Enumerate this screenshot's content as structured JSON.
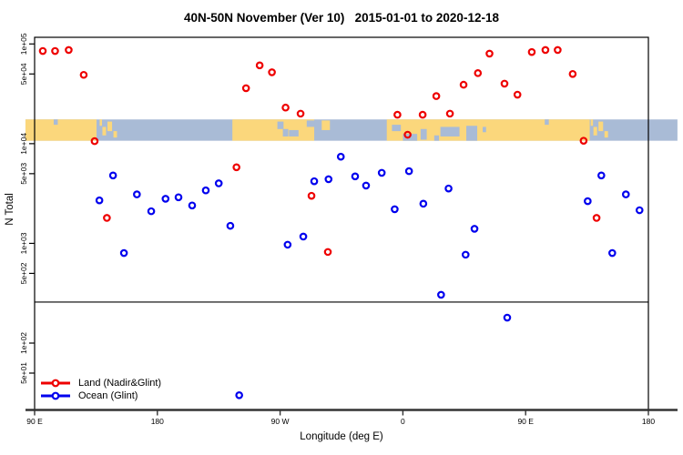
{
  "title": "40N-50N November (Ver 10)   2015-01-01 to 2020-12-18",
  "legend": {
    "items": [
      {
        "label": "Land (Nadir&Glint)",
        "color": "#ee0000"
      },
      {
        "label": "Ocean (Glint)",
        "color": "#0000ee"
      }
    ]
  },
  "colors": {
    "land_point": "#ee0000",
    "ocean_point": "#0000ee",
    "map_land": "#fbd77c",
    "map_water": "#a9bbd6",
    "axis": "#000000",
    "bottom_axis": "#333333"
  },
  "chart_data": {
    "type": "scatter",
    "title": "40N-50N November (Ver 10)   2015-01-01 to 2020-12-18",
    "xlabel": "Longitude (deg E)",
    "ylabel": "N Total",
    "x_axis": {
      "note": "longitude axis starts at 90E and wraps: values run -270..180 deg E",
      "range": [
        -270,
        180
      ],
      "ticks": [
        {
          "pos": -270,
          "label": "90 E"
        },
        {
          "pos": -180,
          "label": "180"
        },
        {
          "pos": -90,
          "label": "90 W"
        },
        {
          "pos": 0,
          "label": "0"
        },
        {
          "pos": 90,
          "label": "90 E"
        },
        {
          "pos": 180,
          "label": "180"
        }
      ]
    },
    "y_axis": {
      "scale": "log10",
      "range": [
        22,
        119000
      ],
      "ticks": [
        {
          "value": 100000,
          "label": "1e+05"
        },
        {
          "value": 50000,
          "label": "5e+04"
        },
        {
          "value": 10000,
          "label": "1e+04"
        },
        {
          "value": 5000,
          "label": "5e+03"
        },
        {
          "value": 1000,
          "label": "1e+03"
        },
        {
          "value": 500,
          "label": "5e+02"
        },
        {
          "value": 100,
          "label": "1e+02"
        },
        {
          "value": 50,
          "label": "5e+01"
        }
      ]
    },
    "threshold_line_n": 258,
    "series": [
      {
        "name": "Land (Nadir&Glint)",
        "color": "#ee0000",
        "points": [
          {
            "lon": -264,
            "n": 85000
          },
          {
            "lon": -255,
            "n": 85000
          },
          {
            "lon": -245,
            "n": 87000
          },
          {
            "lon": -234,
            "n": 49000
          },
          {
            "lon": -226,
            "n": 10600
          },
          {
            "lon": -217,
            "n": 1800
          },
          {
            "lon": -122,
            "n": 5800
          },
          {
            "lon": -115,
            "n": 36000
          },
          {
            "lon": -105,
            "n": 61000
          },
          {
            "lon": -96,
            "n": 52000
          },
          {
            "lon": -86,
            "n": 23000
          },
          {
            "lon": -75,
            "n": 20000
          },
          {
            "lon": -67,
            "n": 3000
          },
          {
            "lon": -55,
            "n": 820
          },
          {
            "lon": -4,
            "n": 19500
          },
          {
            "lon": 3.5,
            "n": 12300
          },
          {
            "lon": 14.5,
            "n": 19500
          },
          {
            "lon": 24.5,
            "n": 30000
          },
          {
            "lon": 34.5,
            "n": 20000
          },
          {
            "lon": 44.5,
            "n": 39000
          },
          {
            "lon": 55,
            "n": 51000
          },
          {
            "lon": 63.5,
            "n": 80000
          },
          {
            "lon": 74.5,
            "n": 40000
          },
          {
            "lon": 84,
            "n": 31000
          },
          {
            "lon": 94.5,
            "n": 83000
          },
          {
            "lon": 104.5,
            "n": 87000
          },
          {
            "lon": 113.5,
            "n": 87000
          },
          {
            "lon": 124.5,
            "n": 50000
          },
          {
            "lon": 132.5,
            "n": 10700
          },
          {
            "lon": 142,
            "n": 1800
          }
        ]
      },
      {
        "name": "Ocean (Glint)",
        "color": "#0000ee",
        "points": [
          {
            "lon": -222.5,
            "n": 2700
          },
          {
            "lon": -212.5,
            "n": 4800
          },
          {
            "lon": -204.5,
            "n": 800
          },
          {
            "lon": -195,
            "n": 3100
          },
          {
            "lon": -184.5,
            "n": 2100
          },
          {
            "lon": -174,
            "n": 2800
          },
          {
            "lon": -164.5,
            "n": 2900
          },
          {
            "lon": -154.5,
            "n": 2400
          },
          {
            "lon": -144.5,
            "n": 3400
          },
          {
            "lon": -135,
            "n": 4000
          },
          {
            "lon": -126.5,
            "n": 1500
          },
          {
            "lon": -120,
            "n": 30
          },
          {
            "lon": -84.5,
            "n": 970
          },
          {
            "lon": -73,
            "n": 1170
          },
          {
            "lon": -65,
            "n": 4200
          },
          {
            "lon": -54.5,
            "n": 4400
          },
          {
            "lon": -45.5,
            "n": 7400
          },
          {
            "lon": -35,
            "n": 4700
          },
          {
            "lon": -27,
            "n": 3800
          },
          {
            "lon": -15.5,
            "n": 5100
          },
          {
            "lon": -6,
            "n": 2200
          },
          {
            "lon": 4.5,
            "n": 5300
          },
          {
            "lon": 15,
            "n": 2500
          },
          {
            "lon": 28,
            "n": 305
          },
          {
            "lon": 33.5,
            "n": 3550
          },
          {
            "lon": 46,
            "n": 770
          },
          {
            "lon": 52.5,
            "n": 1400
          },
          {
            "lon": 76.5,
            "n": 180
          },
          {
            "lon": 135.5,
            "n": 2650
          },
          {
            "lon": 145.5,
            "n": 4800
          },
          {
            "lon": 153.5,
            "n": 800
          },
          {
            "lon": 163.5,
            "n": 3100
          },
          {
            "lon": 173.5,
            "n": 2150
          }
        ]
      }
    ],
    "map_band": {
      "note": "40N-50N world strip drawn across the plot between these N values",
      "top_n": 17500,
      "bottom_n": 10700,
      "water_extent": {
        "lon0": -276.7,
        "lon1": 201.3
      },
      "land_segments": [
        {
          "lon0": -276.7,
          "lon1": -224.6
        },
        {
          "lon0": -125,
          "lon1": -65
        },
        {
          "lon0": -11.8,
          "lon1": 137
        }
      ],
      "islands": [
        {
          "lon0": -222.3,
          "lon1": -220.6,
          "y0": 0.0,
          "y1": 0.3
        },
        {
          "lon0": -220.3,
          "lon1": -217.6,
          "y0": 0.35,
          "y1": 0.75
        },
        {
          "lon0": -216.6,
          "lon1": -213.2,
          "y0": 0.1,
          "y1": 0.55
        },
        {
          "lon0": -212.2,
          "lon1": -209.6,
          "y0": 0.55,
          "y1": 0.85
        },
        {
          "lon0": -59.5,
          "lon1": -53.5,
          "y0": 0.05,
          "y1": 0.5
        },
        {
          "lon0": 137.7,
          "lon1": 139.4,
          "y0": 0.0,
          "y1": 0.3
        },
        {
          "lon0": 139.7,
          "lon1": 142.4,
          "y0": 0.35,
          "y1": 0.75
        },
        {
          "lon0": 143.4,
          "lon1": 146.8,
          "y0": 0.1,
          "y1": 0.55
        },
        {
          "lon0": 147.8,
          "lon1": 150.4,
          "y0": 0.55,
          "y1": 0.85
        }
      ],
      "water_patches": [
        {
          "lon0": -256,
          "lon1": -253,
          "y0": 0.0,
          "y1": 0.25
        },
        {
          "lon0": -92,
          "lon1": -87.5,
          "y0": 0.1,
          "y1": 0.45
        },
        {
          "lon0": -88,
          "lon1": -84,
          "y0": 0.45,
          "y1": 0.8
        },
        {
          "lon0": -83.5,
          "lon1": -76.5,
          "y0": 0.5,
          "y1": 0.8
        },
        {
          "lon0": -70.5,
          "lon1": -64.5,
          "y0": 0.05,
          "y1": 0.35
        },
        {
          "lon0": -8,
          "lon1": -1.5,
          "y0": 0.25,
          "y1": 0.55
        },
        {
          "lon0": 0,
          "lon1": 10.5,
          "y0": 0.68,
          "y1": 1.0
        },
        {
          "lon0": 13,
          "lon1": 17.5,
          "y0": 0.45,
          "y1": 0.95
        },
        {
          "lon0": 23,
          "lon1": 26.5,
          "y0": 0.75,
          "y1": 1.0
        },
        {
          "lon0": 27.5,
          "lon1": 41.5,
          "y0": 0.35,
          "y1": 0.8
        },
        {
          "lon0": 46.5,
          "lon1": 54.5,
          "y0": 0.3,
          "y1": 1.0
        },
        {
          "lon0": 58.5,
          "lon1": 61,
          "y0": 0.35,
          "y1": 0.6
        },
        {
          "lon0": 104,
          "lon1": 107,
          "y0": 0.0,
          "y1": 0.25
        }
      ]
    }
  }
}
